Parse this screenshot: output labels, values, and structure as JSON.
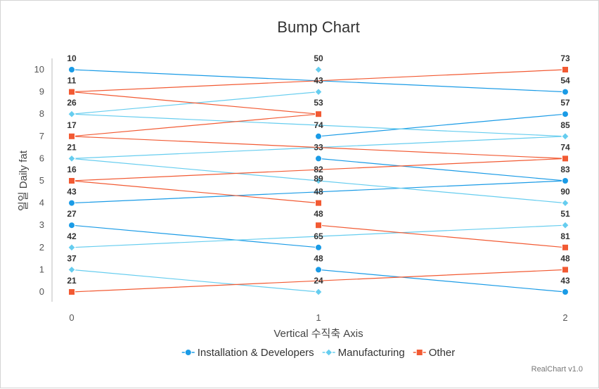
{
  "chart_data": {
    "type": "line",
    "chart_subtype": "bump",
    "title": "Bump Chart",
    "xlabel": "Vertical 수직축 Axis",
    "ylabel": "일일 Daily fat",
    "x": [
      0,
      1,
      2
    ],
    "x_tick_labels": [
      "0",
      "1",
      "2"
    ],
    "y_tick_labels": [
      "0",
      "1",
      "2",
      "3",
      "4",
      "5",
      "6",
      "7",
      "8",
      "9",
      "10"
    ],
    "xlim": [
      0,
      2
    ],
    "ylim": [
      0,
      10
    ],
    "grid": false,
    "legend_position": "bottom",
    "credit": "RealChart v1.0",
    "series": [
      {
        "name": "Installation & Developers",
        "marker": "circle",
        "color": "#1a9be6",
        "lines": [
          {
            "rank": [
              10,
              9.5,
              9
            ],
            "labels": [
              "10",
              "",
              "54"
            ]
          },
          {
            "rank": [
              4,
              4.5,
              5
            ],
            "labels": [
              "43",
              "89",
              "83"
            ]
          },
          {
            "rank": [
              3,
              2,
              null
            ],
            "labels": [
              "27",
              "65",
              ""
            ]
          },
          {
            "rank": [
              null,
              1,
              0
            ],
            "labels": [
              "",
              "48",
              "43"
            ]
          },
          {
            "rank": [
              null,
              7,
              8
            ],
            "labels": [
              "",
              "74",
              "57"
            ]
          },
          {
            "rank": [
              null,
              6,
              5
            ],
            "labels": [
              "",
              "33",
              ""
            ]
          }
        ]
      },
      {
        "name": "Manufacturing",
        "marker": "diamond",
        "color": "#66cdef",
        "lines": [
          {
            "rank": [
              null,
              10,
              null
            ],
            "labels": [
              "",
              "50",
              ""
            ]
          },
          {
            "rank": [
              8,
              9,
              null
            ],
            "labels": [
              "26",
              "43",
              ""
            ]
          },
          {
            "rank": [
              8,
              7.5,
              7
            ],
            "labels": [
              "",
              "",
              "85"
            ]
          },
          {
            "rank": [
              6,
              6.5,
              7
            ],
            "labels": [
              "21",
              "",
              ""
            ]
          },
          {
            "rank": [
              6,
              5,
              4
            ],
            "labels": [
              "",
              "82",
              "90"
            ]
          },
          {
            "rank": [
              2,
              2.5,
              3
            ],
            "labels": [
              "42",
              "",
              "51"
            ]
          },
          {
            "rank": [
              1,
              0,
              null
            ],
            "labels": [
              "37",
              "24",
              ""
            ]
          }
        ]
      },
      {
        "name": "Other",
        "marker": "square",
        "color": "#f25a33",
        "lines": [
          {
            "rank": [
              9,
              9.5,
              10
            ],
            "labels": [
              "11",
              "",
              "73"
            ]
          },
          {
            "rank": [
              9,
              8,
              null
            ],
            "labels": [
              "",
              "53",
              ""
            ]
          },
          {
            "rank": [
              7,
              8,
              null
            ],
            "labels": [
              "17",
              "",
              ""
            ]
          },
          {
            "rank": [
              7,
              6.5,
              6
            ],
            "labels": [
              "",
              "",
              "74"
            ]
          },
          {
            "rank": [
              5,
              5.5,
              6
            ],
            "labels": [
              "16",
              "",
              ""
            ]
          },
          {
            "rank": [
              5,
              4,
              null
            ],
            "labels": [
              "",
              "48",
              ""
            ]
          },
          {
            "rank": [
              null,
              3,
              2
            ],
            "labels": [
              "",
              "48",
              "81"
            ]
          },
          {
            "rank": [
              0,
              0.5,
              1
            ],
            "labels": [
              "21",
              "",
              "48"
            ]
          }
        ]
      }
    ]
  }
}
